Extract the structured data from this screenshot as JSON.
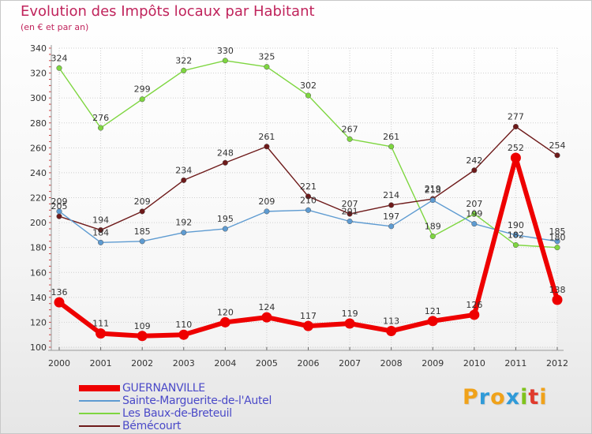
{
  "title": "Evolution des Impôts locaux par Habitant",
  "subtitle": "(en € et par an)",
  "logo": {
    "letters": [
      "P",
      "r",
      "o",
      "x",
      "i",
      "t",
      "i"
    ],
    "colors": [
      "#f0a21a",
      "#2f9ad8",
      "#f0a21a",
      "#2f9ad8",
      "#7fc31c",
      "#e03a2c",
      "#f0a21a"
    ]
  },
  "chart_data": {
    "type": "line",
    "title": "Evolution des Impôts locaux par Habitant",
    "ylabel": "(en € et par an)",
    "xlabel": "",
    "ylim": [
      100,
      340
    ],
    "yticks": [
      100,
      120,
      140,
      160,
      180,
      200,
      220,
      240,
      260,
      280,
      300,
      320,
      340
    ],
    "x": [
      2000,
      2001,
      2002,
      2003,
      2004,
      2005,
      2006,
      2007,
      2008,
      2009,
      2010,
      2011,
      2012
    ],
    "grid": true,
    "series": [
      {
        "name": "GUERNANVILLE",
        "color": "#ee0000",
        "values": [
          136,
          111,
          109,
          110,
          120,
          124,
          117,
          119,
          113,
          121,
          126,
          252,
          138
        ]
      },
      {
        "name": "Sainte-Marguerite-de-l'Autel",
        "color": "#5e9bd1",
        "values": [
          209,
          184,
          185,
          192,
          195,
          209,
          210,
          201,
          197,
          218,
          199,
          190,
          185
        ]
      },
      {
        "name": "Les Baux-de-Breteuil",
        "color": "#7ed640",
        "values": [
          324,
          276,
          299,
          322,
          330,
          325,
          302,
          267,
          261,
          189,
          207,
          182,
          180
        ]
      },
      {
        "name": "Bémécourt",
        "color": "#6e1a1a",
        "values": [
          205,
          194,
          209,
          234,
          248,
          261,
          221,
          207,
          214,
          219,
          242,
          277,
          254
        ]
      }
    ]
  }
}
